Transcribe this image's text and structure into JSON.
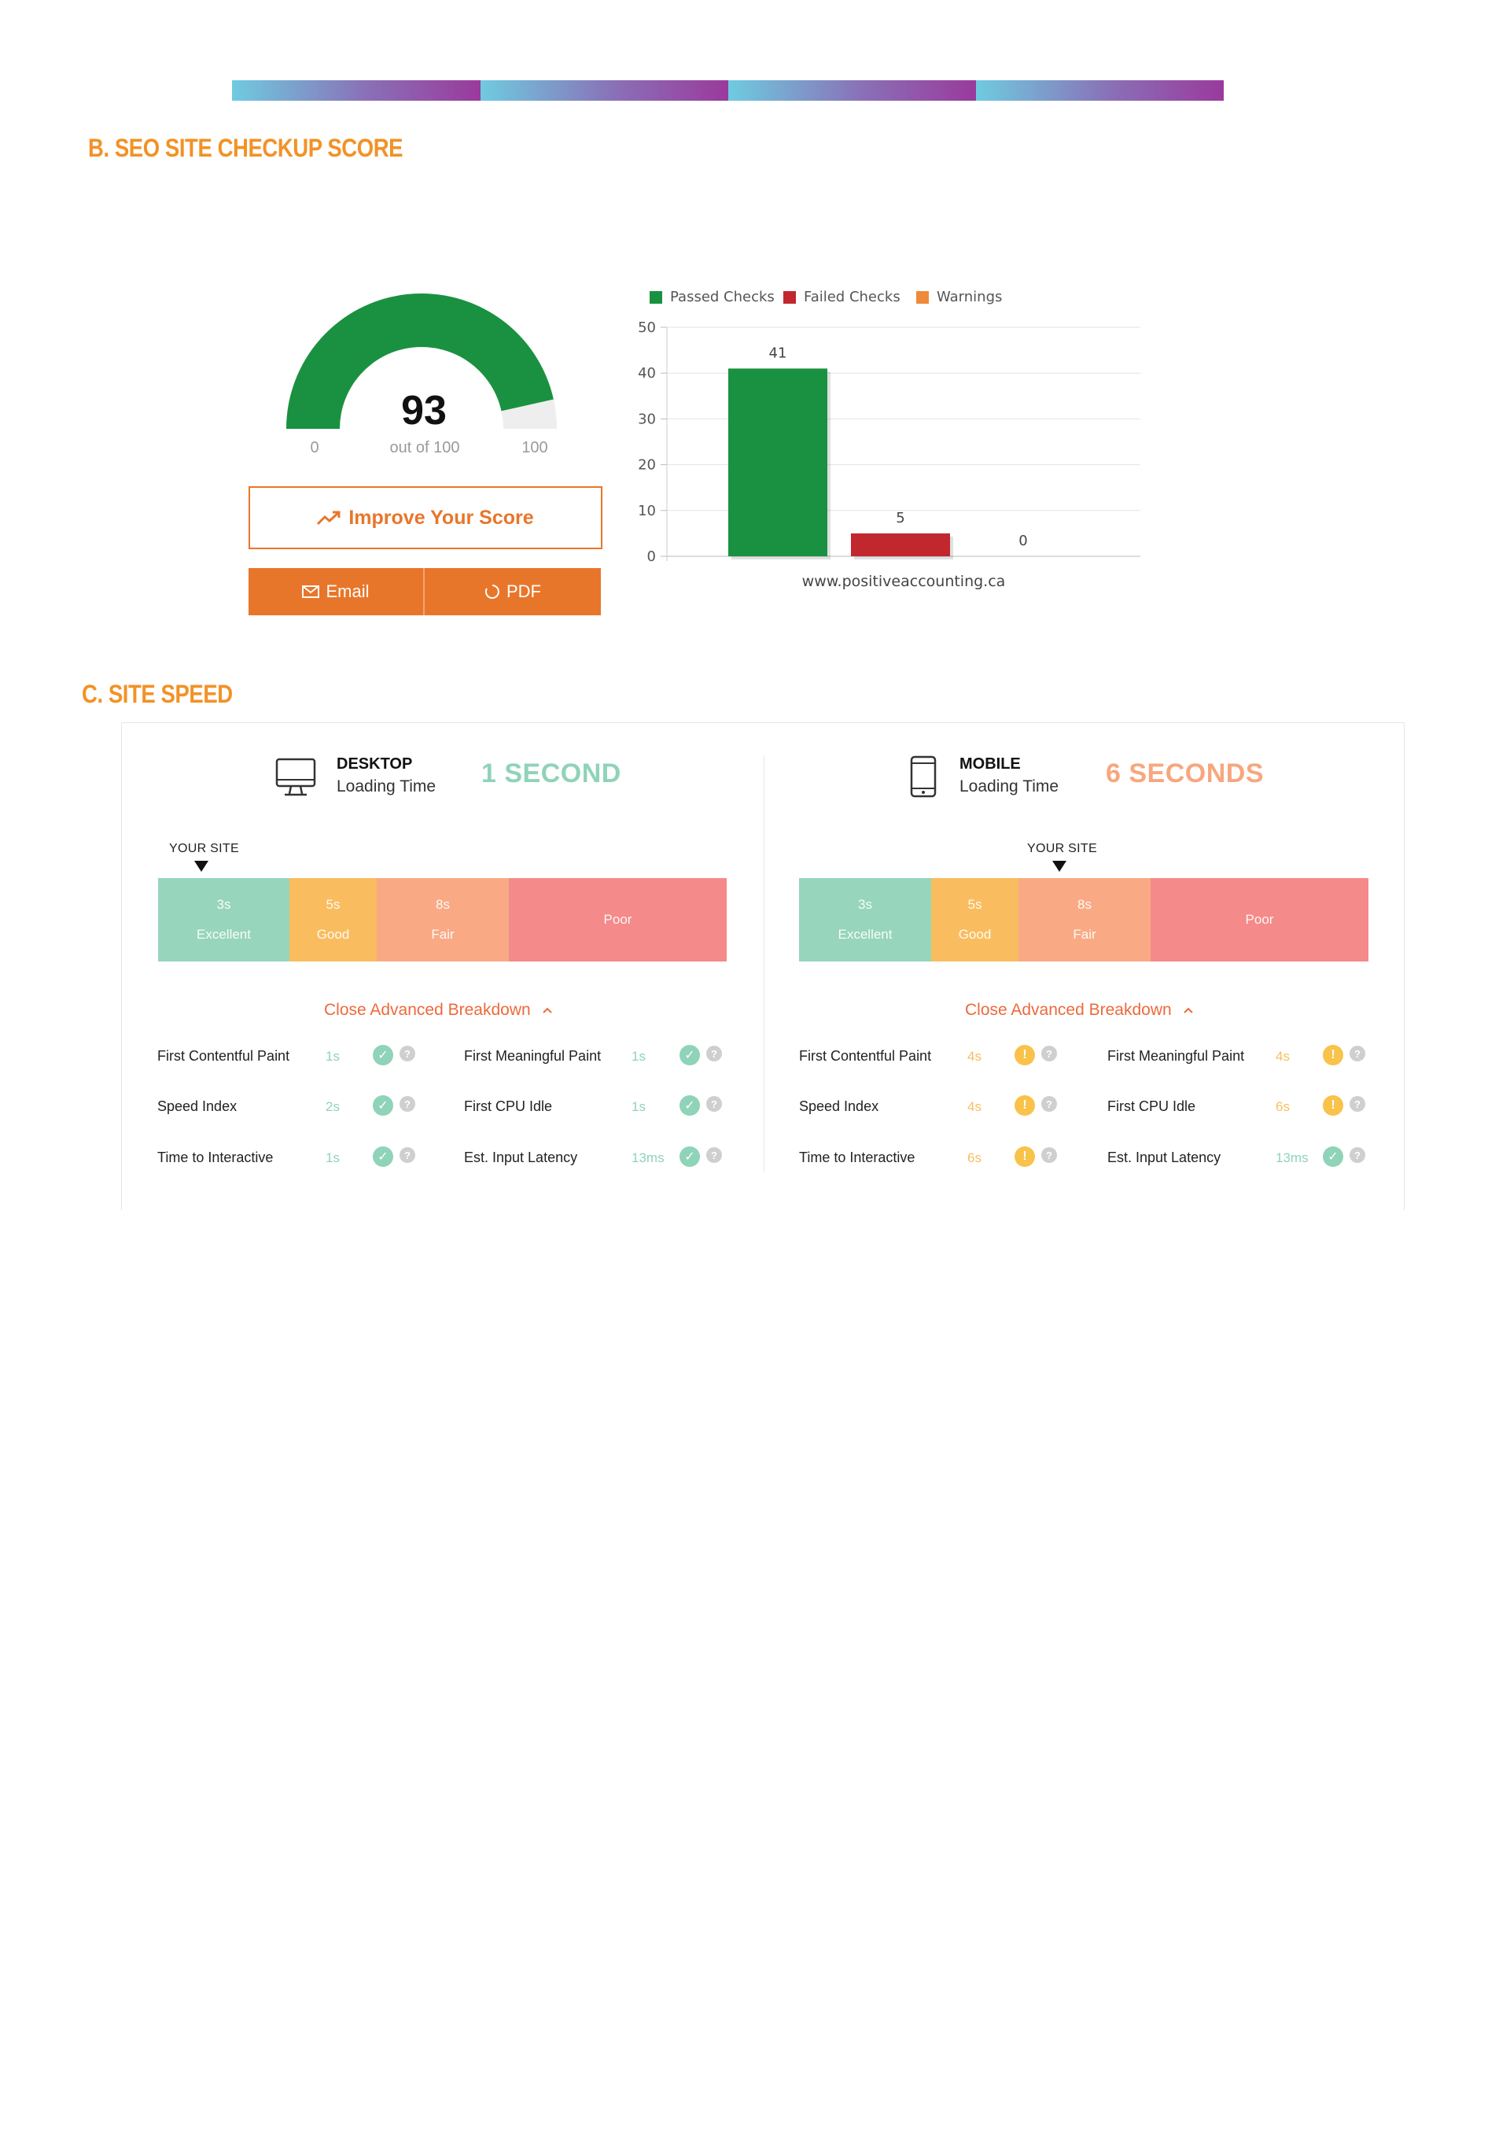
{
  "sections": {
    "seo_title": "B. SEO SITE CHECKUP SCORE",
    "speed_title": "C. SITE SPEED"
  },
  "gauge": {
    "score": "93",
    "score_value": 93,
    "out_of": "out of 100",
    "min": "0",
    "max": "100",
    "fill_color": "#1a9140",
    "track_color": "#eeeeee"
  },
  "buttons": {
    "improve": "Improve Your Score",
    "email": "Email",
    "pdf": "PDF"
  },
  "chart_data": {
    "type": "bar",
    "categories": [
      "www.positiveaccounting.ca"
    ],
    "series": [
      {
        "name": "Passed Checks",
        "values": [
          41
        ],
        "color": "#1a9140"
      },
      {
        "name": "Failed Checks",
        "values": [
          5
        ],
        "color": "#c1272d"
      },
      {
        "name": "Warnings",
        "values": [
          0
        ],
        "color": "#ee8a3a"
      }
    ],
    "ylim": [
      0,
      50
    ],
    "yticks": [
      "0",
      "10",
      "20",
      "30",
      "40",
      "50"
    ],
    "grid": true,
    "legend": "top-left"
  },
  "speed": {
    "desktop": {
      "title": "DESKTOP",
      "subtitle": "Loading Time",
      "time": "1 SECOND",
      "time_color": "#8fd3b9",
      "your_site": "YOUR SITE",
      "segments": [
        {
          "top": "3s",
          "bottom": "Excellent",
          "color": "#97d5bc"
        },
        {
          "top": "5s",
          "bottom": "Good",
          "color": "#f9bd5f"
        },
        {
          "top": "8s",
          "bottom": "Fair",
          "color": "#f9aa85"
        },
        {
          "top": "",
          "bottom": "Poor",
          "color": "#f48a89"
        }
      ],
      "breakdown": "Close Advanced Breakdown",
      "metrics": [
        {
          "label": "First Contentful Paint",
          "value": "1s",
          "status": "pass"
        },
        {
          "label": "First Meaningful Paint",
          "value": "1s",
          "status": "pass"
        },
        {
          "label": "Speed Index",
          "value": "2s",
          "status": "pass"
        },
        {
          "label": "First CPU Idle",
          "value": "1s",
          "status": "pass"
        },
        {
          "label": "Time to Interactive",
          "value": "1s",
          "status": "pass"
        },
        {
          "label": "Est. Input Latency",
          "value": "13ms",
          "status": "pass"
        }
      ]
    },
    "mobile": {
      "title": "MOBILE",
      "subtitle": "Loading Time",
      "time": "6 SECONDS",
      "time_color": "#f7a77e",
      "your_site": "YOUR SITE",
      "segments": [
        {
          "top": "3s",
          "bottom": "Excellent",
          "color": "#97d5bc"
        },
        {
          "top": "5s",
          "bottom": "Good",
          "color": "#f9bd5f"
        },
        {
          "top": "8s",
          "bottom": "Fair",
          "color": "#f9aa85"
        },
        {
          "top": "",
          "bottom": "Poor",
          "color": "#f48a89"
        }
      ],
      "breakdown": "Close Advanced Breakdown",
      "metrics": [
        {
          "label": "First Contentful Paint",
          "value": "4s",
          "status": "warn"
        },
        {
          "label": "First Meaningful Paint",
          "value": "4s",
          "status": "warn"
        },
        {
          "label": "Speed Index",
          "value": "4s",
          "status": "warn"
        },
        {
          "label": "First CPU Idle",
          "value": "6s",
          "status": "warn"
        },
        {
          "label": "Time to Interactive",
          "value": "6s",
          "status": "warn"
        },
        {
          "label": "Est. Input Latency",
          "value": "13ms",
          "status": "pass"
        }
      ]
    }
  },
  "colors": {
    "accent": "#f29226",
    "button": "#e8762a",
    "pass": "#8fd3b9",
    "warn": "#f9c24a",
    "link": "#ec6a3c"
  }
}
